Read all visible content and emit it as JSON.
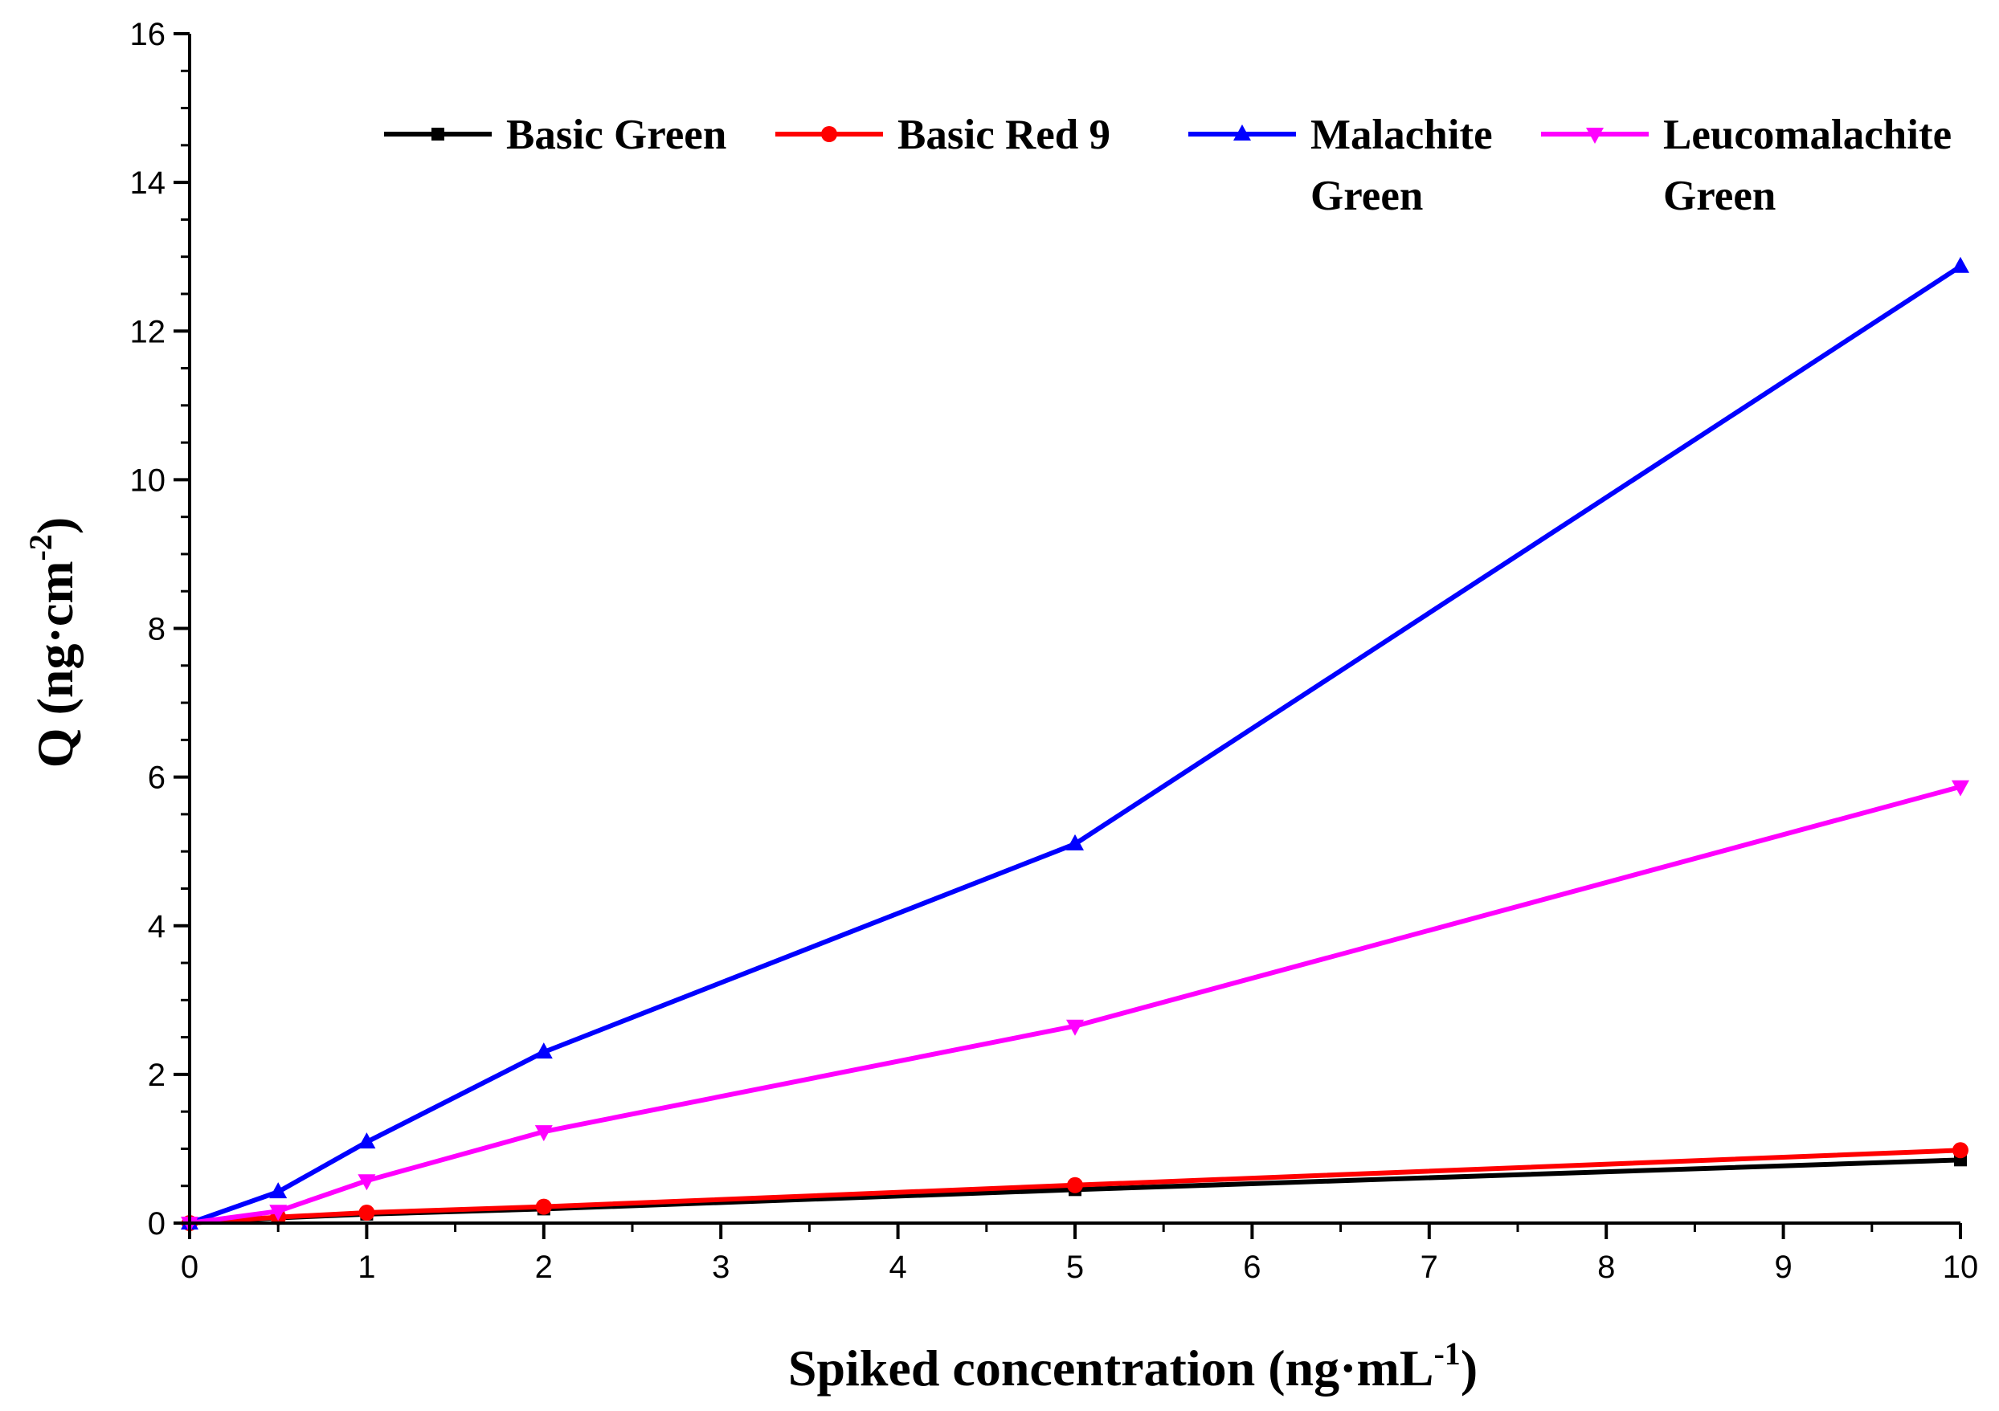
{
  "chart_data": {
    "type": "line",
    "title": "",
    "xlabel": "Spiked concentration (ng·mL",
    "xlabel_sup": "-1",
    "xlabel_close": ")",
    "ylabel": "Q (ng·cm",
    "ylabel_sup": "-2",
    "ylabel_close": ")",
    "xlim": [
      0,
      10
    ],
    "ylim": [
      0,
      16
    ],
    "xticks": [
      0,
      1,
      2,
      3,
      4,
      5,
      6,
      7,
      8,
      9,
      10
    ],
    "yticks": [
      0,
      2,
      4,
      6,
      8,
      10,
      12,
      14,
      16
    ],
    "grid": false,
    "legend_position": "top",
    "x": [
      0,
      0.5,
      1,
      2,
      5,
      10
    ],
    "series": [
      {
        "name": "Basic Green",
        "name_lines": [
          "Basic Green"
        ],
        "color": "#000000",
        "marker": "square",
        "values": [
          0,
          0.07,
          0.12,
          0.19,
          0.45,
          0.85
        ]
      },
      {
        "name": "Basic Red 9",
        "name_lines": [
          "Basic Red 9"
        ],
        "color": "#ff0000",
        "marker": "circle",
        "values": [
          0,
          0.08,
          0.14,
          0.22,
          0.51,
          0.98
        ]
      },
      {
        "name": "Malachite Green",
        "name_lines": [
          "Malachite",
          "Green"
        ],
        "color": "#0000ff",
        "marker": "triangle-up",
        "values": [
          0,
          0.42,
          1.09,
          2.3,
          5.1,
          12.87
        ]
      },
      {
        "name": "Leucomalachite Green",
        "name_lines": [
          "Leucomalachite",
          "Green"
        ],
        "color": "#ff00ff",
        "marker": "triangle-down",
        "values": [
          0,
          0.16,
          0.57,
          1.23,
          2.65,
          5.87
        ]
      }
    ]
  }
}
